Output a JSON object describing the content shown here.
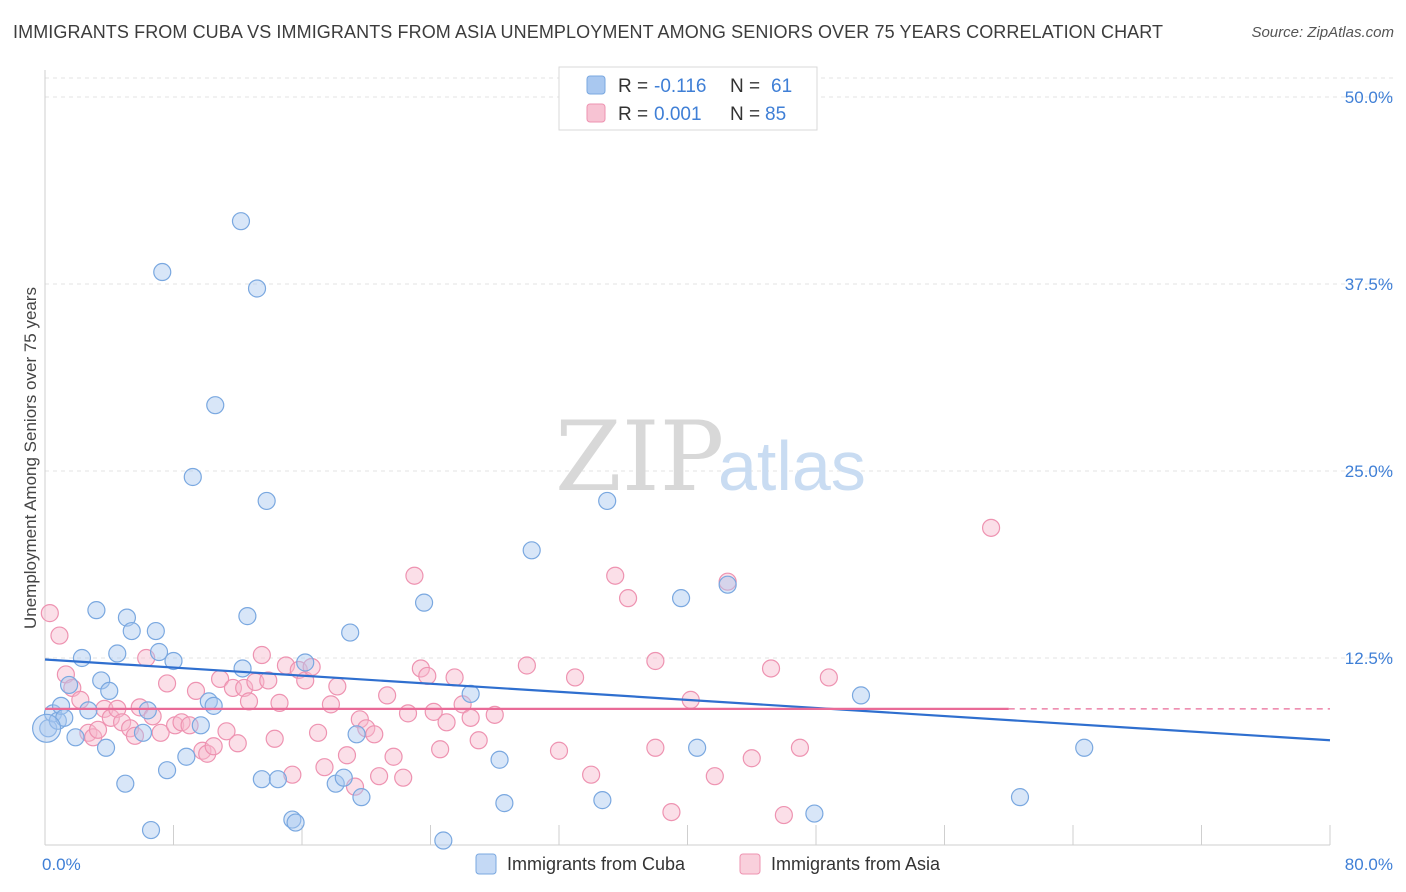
{
  "header": {
    "title": "IMMIGRANTS FROM CUBA VS IMMIGRANTS FROM ASIA UNEMPLOYMENT AMONG SENIORS OVER 75 YEARS CORRELATION CHART",
    "source": "Source: ZipAtlas.com"
  },
  "watermark": {
    "zip": "ZIP",
    "atlas": "atlas"
  },
  "colors": {
    "cuba_fill": "#a9c8f0",
    "cuba_stroke": "#7aa8e0",
    "cuba_line": "#2f6fcf",
    "asia_fill": "#f7b8cc",
    "asia_stroke": "#ee93b1",
    "asia_line": "#e96a97",
    "grid": "#e3e3e3",
    "tick_text": "#3f7fd6"
  },
  "legend": {
    "rows": [
      {
        "r_label": "R = ",
        "r_value": "-0.116",
        "n_label": "N = ",
        "n_value": "61"
      },
      {
        "r_label": "R = ",
        "r_value": "0.001",
        "n_label": "N = ",
        "n_value": "85"
      }
    ]
  },
  "chart_data": {
    "type": "scatter",
    "title": "IMMIGRANTS FROM CUBA VS IMMIGRANTS FROM ASIA UNEMPLOYMENT AMONG SENIORS OVER 75 YEARS CORRELATION CHART",
    "xlabel": "",
    "ylabel": "Unemployment Among Seniors over 75 years",
    "xlim": [
      0,
      80
    ],
    "ylim": [
      0,
      50
    ],
    "x_tick_labels": [
      "0.0%",
      "80.0%"
    ],
    "y_ticks": [
      12.5,
      25.0,
      37.5,
      50.0
    ],
    "y_tick_labels": [
      "12.5%",
      "25.0%",
      "37.5%",
      "50.0%"
    ],
    "grid": true,
    "legend_position": "top-center",
    "series": [
      {
        "name": "Immigrants from Cuba",
        "r": -0.116,
        "n": 61,
        "trend": {
          "x0": 0,
          "y0": 12.4,
          "x1": 80,
          "y1": 7.0
        },
        "points": [
          [
            0.2,
            7.8
          ],
          [
            0.5,
            8.8
          ],
          [
            0.8,
            8.3
          ],
          [
            1.0,
            9.3
          ],
          [
            1.2,
            8.5
          ],
          [
            1.5,
            10.7
          ],
          [
            1.9,
            7.2
          ],
          [
            2.3,
            12.5
          ],
          [
            2.7,
            9.0
          ],
          [
            3.2,
            15.7
          ],
          [
            3.5,
            11.0
          ],
          [
            3.8,
            6.5
          ],
          [
            4.0,
            10.3
          ],
          [
            4.5,
            12.8
          ],
          [
            5.0,
            4.1
          ],
          [
            5.1,
            15.2
          ],
          [
            5.4,
            14.3
          ],
          [
            6.1,
            7.5
          ],
          [
            6.4,
            9.0
          ],
          [
            6.6,
            1.0
          ],
          [
            6.9,
            14.3
          ],
          [
            7.1,
            12.9
          ],
          [
            7.3,
            38.3
          ],
          [
            7.6,
            5.0
          ],
          [
            8.0,
            12.3
          ],
          [
            8.8,
            5.9
          ],
          [
            9.2,
            24.6
          ],
          [
            9.7,
            8.0
          ],
          [
            10.2,
            9.6
          ],
          [
            10.5,
            9.3
          ],
          [
            10.6,
            29.4
          ],
          [
            12.2,
            41.7
          ],
          [
            12.3,
            11.8
          ],
          [
            12.6,
            15.3
          ],
          [
            13.2,
            37.2
          ],
          [
            13.5,
            4.4
          ],
          [
            13.8,
            23.0
          ],
          [
            14.5,
            4.4
          ],
          [
            15.4,
            1.7
          ],
          [
            15.6,
            1.5
          ],
          [
            16.2,
            12.2
          ],
          [
            18.1,
            4.1
          ],
          [
            18.6,
            4.5
          ],
          [
            19.0,
            14.2
          ],
          [
            19.4,
            7.4
          ],
          [
            19.7,
            3.2
          ],
          [
            23.6,
            16.2
          ],
          [
            24.8,
            0.3
          ],
          [
            26.5,
            10.1
          ],
          [
            28.3,
            5.7
          ],
          [
            28.6,
            2.8
          ],
          [
            30.3,
            19.7
          ],
          [
            34.7,
            3.0
          ],
          [
            35.0,
            23.0
          ],
          [
            39.6,
            16.5
          ],
          [
            40.6,
            6.5
          ],
          [
            42.5,
            17.4
          ],
          [
            47.9,
            2.1
          ],
          [
            50.8,
            10.0
          ],
          [
            60.7,
            3.2
          ],
          [
            64.7,
            6.5
          ]
        ]
      },
      {
        "name": "Immigrants from Asia",
        "r": 0.001,
        "n": 85,
        "trend": {
          "x0": 0,
          "y0": 9.1,
          "x1": 60,
          "y1": 9.1,
          "dashed_to": 80
        },
        "points": [
          [
            0.3,
            15.5
          ],
          [
            0.9,
            14.0
          ],
          [
            1.3,
            11.4
          ],
          [
            1.7,
            10.5
          ],
          [
            2.2,
            9.7
          ],
          [
            2.7,
            7.5
          ],
          [
            3.0,
            7.2
          ],
          [
            3.3,
            7.7
          ],
          [
            3.7,
            9.1
          ],
          [
            4.1,
            8.5
          ],
          [
            4.5,
            9.1
          ],
          [
            4.8,
            8.2
          ],
          [
            5.3,
            7.8
          ],
          [
            5.6,
            7.3
          ],
          [
            5.9,
            9.2
          ],
          [
            6.3,
            12.5
          ],
          [
            6.7,
            8.6
          ],
          [
            7.2,
            7.5
          ],
          [
            7.6,
            10.8
          ],
          [
            8.1,
            8.0
          ],
          [
            8.5,
            8.2
          ],
          [
            9.0,
            8.0
          ],
          [
            9.4,
            10.3
          ],
          [
            9.8,
            6.3
          ],
          [
            10.1,
            6.1
          ],
          [
            10.5,
            6.6
          ],
          [
            10.9,
            11.1
          ],
          [
            11.3,
            7.6
          ],
          [
            11.7,
            10.5
          ],
          [
            12.0,
            6.8
          ],
          [
            12.4,
            10.5
          ],
          [
            12.7,
            9.6
          ],
          [
            13.1,
            10.9
          ],
          [
            13.5,
            12.7
          ],
          [
            13.9,
            11.0
          ],
          [
            14.3,
            7.1
          ],
          [
            14.6,
            9.5
          ],
          [
            15.0,
            12.0
          ],
          [
            15.4,
            4.7
          ],
          [
            15.8,
            11.7
          ],
          [
            16.2,
            11.0
          ],
          [
            16.6,
            11.9
          ],
          [
            17.0,
            7.5
          ],
          [
            17.4,
            5.2
          ],
          [
            17.8,
            9.4
          ],
          [
            18.2,
            10.6
          ],
          [
            18.8,
            6.0
          ],
          [
            19.3,
            3.9
          ],
          [
            19.6,
            8.4
          ],
          [
            20.0,
            7.8
          ],
          [
            20.5,
            7.4
          ],
          [
            20.8,
            4.6
          ],
          [
            21.3,
            10.0
          ],
          [
            21.7,
            5.9
          ],
          [
            22.3,
            4.5
          ],
          [
            22.6,
            8.8
          ],
          [
            23.0,
            18.0
          ],
          [
            23.4,
            11.8
          ],
          [
            23.8,
            11.3
          ],
          [
            24.2,
            8.9
          ],
          [
            24.6,
            6.4
          ],
          [
            25.0,
            8.2
          ],
          [
            25.5,
            11.2
          ],
          [
            26.0,
            9.4
          ],
          [
            26.5,
            8.5
          ],
          [
            27.0,
            7.0
          ],
          [
            28.0,
            8.7
          ],
          [
            30.0,
            12.0
          ],
          [
            32.0,
            6.3
          ],
          [
            33.0,
            11.2
          ],
          [
            34.0,
            4.7
          ],
          [
            35.5,
            18.0
          ],
          [
            36.3,
            16.5
          ],
          [
            38.0,
            12.3
          ],
          [
            39.0,
            2.2
          ],
          [
            40.2,
            9.7
          ],
          [
            42.5,
            17.6
          ],
          [
            44.0,
            5.8
          ],
          [
            45.2,
            11.8
          ],
          [
            46.0,
            2.0
          ],
          [
            47.0,
            6.5
          ],
          [
            48.8,
            11.2
          ],
          [
            58.9,
            21.2
          ],
          [
            38.0,
            6.5
          ],
          [
            41.7,
            4.6
          ]
        ]
      }
    ]
  },
  "bottom_legend": {
    "items": [
      {
        "label": "Immigrants from Cuba"
      },
      {
        "label": "Immigrants from Asia"
      }
    ]
  }
}
